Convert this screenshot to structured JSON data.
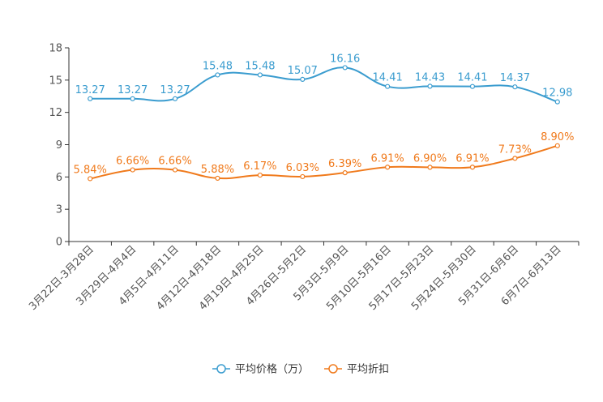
{
  "chart_data": {
    "type": "line",
    "categories": [
      "3月22日-3月28日",
      "3月29日-4月4日",
      "4月5日-4月11日",
      "4月12日-4月18日",
      "4月19日-4月25日",
      "4月26日-5月2日",
      "5月3日-5月9日",
      "5月10日-5月16日",
      "5月17日-5月23日",
      "5月24日-5月30日",
      "5月31日-6月6日",
      "6月7日-6月13日"
    ],
    "ylim": [
      0,
      18
    ],
    "yticks": [
      0,
      3,
      6,
      9,
      12,
      15,
      18
    ],
    "series": [
      {
        "name": "平均价格（万）",
        "color": "#3a9ccf",
        "values": [
          13.27,
          13.27,
          13.27,
          15.48,
          15.48,
          15.07,
          16.16,
          14.41,
          14.43,
          14.41,
          14.37,
          12.98
        ],
        "labels": [
          "13.27",
          "13.27",
          "13.27",
          "15.48",
          "15.48",
          "15.07",
          "16.16",
          "14.41",
          "14.43",
          "14.41",
          "14.37",
          "12.98"
        ]
      },
      {
        "name": "平均折扣",
        "color": "#f07a1c",
        "values": [
          5.84,
          6.66,
          6.66,
          5.88,
          6.17,
          6.03,
          6.39,
          6.91,
          6.9,
          6.91,
          7.73,
          8.9
        ],
        "labels": [
          "5.84%",
          "6.66%",
          "6.66%",
          "5.88%",
          "6.17%",
          "6.03%",
          "6.39%",
          "6.91%",
          "6.90%",
          "6.91%",
          "7.73%",
          "8.90%"
        ]
      }
    ]
  }
}
